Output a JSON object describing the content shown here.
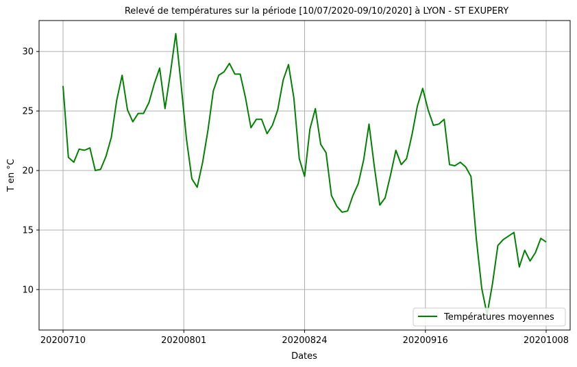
{
  "chart_data": {
    "type": "line",
    "title": "Relevé de températures sur la période [10/07/2020-09/10/2020] à LYON - ST EXUPERY",
    "xlabel": "Dates",
    "ylabel": "T en °C",
    "ylim": [
      6.6,
      32.6
    ],
    "x_ticks": [
      "20200710",
      "20200801",
      "20200824",
      "20200916",
      "20201008"
    ],
    "y_ticks": [
      10,
      15,
      20,
      25,
      30
    ],
    "grid": true,
    "legend_position": "lower-right",
    "series": [
      {
        "name": "Températures moyennes",
        "color": "#008000",
        "values": [
          27.1,
          21.1,
          20.7,
          21.8,
          21.7,
          21.9,
          20.0,
          20.1,
          21.2,
          22.8,
          25.9,
          28.0,
          25.1,
          24.1,
          24.8,
          24.8,
          25.7,
          27.3,
          28.6,
          25.2,
          28.2,
          31.5,
          27.2,
          22.6,
          19.3,
          18.6,
          20.7,
          23.4,
          26.7,
          28.0,
          28.3,
          29.0,
          28.1,
          28.1,
          26.1,
          23.6,
          24.3,
          24.3,
          23.1,
          23.8,
          25.1,
          27.6,
          28.9,
          26.1,
          21.0,
          19.5,
          23.5,
          25.2,
          22.2,
          21.5,
          17.9,
          17.0,
          16.5,
          16.6,
          17.9,
          18.9,
          20.9,
          23.9,
          20.3,
          17.1,
          17.7,
          19.6,
          21.7,
          20.5,
          21.0,
          23.0,
          25.4,
          26.9,
          25.1,
          23.8,
          23.9,
          24.3,
          20.5,
          20.4,
          20.7,
          20.3,
          19.5,
          14.2,
          10.1,
          7.9,
          10.5,
          13.7,
          14.2,
          14.5,
          14.8,
          11.9,
          13.3,
          12.4,
          13.1,
          14.3,
          14.0
        ]
      }
    ]
  }
}
